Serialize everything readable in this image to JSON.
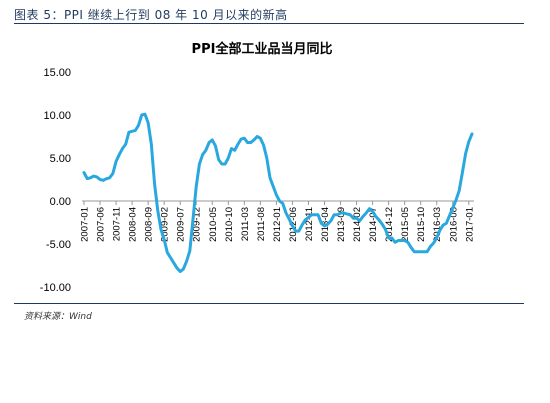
{
  "caption": "图表 5：PPI 继续上行到 08 年 10 月以来的新高",
  "source": "资料来源：Wind",
  "chart_data": {
    "type": "line",
    "title": "PPI全部工业品当月同比",
    "xlabel": "",
    "ylabel": "",
    "ylim": [
      -10,
      15
    ],
    "yticks": [
      15,
      10,
      5,
      0,
      -5,
      -10
    ],
    "ytick_labels": [
      "15.00",
      "10.00",
      "5.00",
      "0.00",
      "-5.00",
      "-10.00"
    ],
    "xtick_labels": [
      "2007-01",
      "2007-06",
      "2007-11",
      "2008-04",
      "2008-09",
      "2009-02",
      "2009-07",
      "2009-12",
      "2010-05",
      "2010-10",
      "2011-03",
      "2011-08",
      "2012-01",
      "2012-06",
      "2012-11",
      "2013-04",
      "2013-09",
      "2014-02",
      "2014-07",
      "2014-12",
      "2015-05",
      "2015-10",
      "2016-03",
      "2016-08",
      "2017-01"
    ],
    "grid": false,
    "color": "#29a8df",
    "series": [
      {
        "x_start": "2007-01",
        "values": [
          3.3,
          2.6,
          2.7,
          2.9,
          2.8,
          2.5,
          2.4,
          2.6,
          2.7,
          3.2,
          4.6,
          5.4,
          6.1,
          6.6,
          8.0,
          8.1,
          8.2,
          8.8,
          10.0,
          10.1,
          9.1,
          6.6,
          2.0,
          -1.1,
          -3.3,
          -4.5,
          -6.0,
          -6.6,
          -7.2,
          -7.8,
          -8.2,
          -7.9,
          -7.0,
          -5.8,
          -2.1,
          1.7,
          4.3,
          5.4,
          5.9,
          6.8,
          7.1,
          6.4,
          4.8,
          4.3,
          4.3,
          5.0,
          6.1,
          5.9,
          6.6,
          7.2,
          7.3,
          6.8,
          6.8,
          7.1,
          7.5,
          7.3,
          6.5,
          5.0,
          2.7,
          1.7,
          0.7,
          0.0,
          -0.3,
          -1.4,
          -2.1,
          -2.9,
          -3.5,
          -3.5,
          -2.8,
          -2.2,
          -1.9,
          -1.6,
          -1.6,
          -1.6,
          -2.6,
          -2.9,
          -2.7,
          -2.3,
          -1.6,
          -1.6,
          -1.4,
          -1.4,
          -1.5,
          -1.6,
          -2.0,
          -2.0,
          -2.3,
          -1.8,
          -1.4,
          -0.9,
          -1.2,
          -1.8,
          -2.2,
          -2.7,
          -3.3,
          -4.3,
          -4.3,
          -4.8,
          -4.6,
          -4.6,
          -4.6,
          -4.8,
          -5.4,
          -5.9,
          -5.9,
          -5.9,
          -5.9,
          -5.9,
          -5.3,
          -4.9,
          -4.3,
          -3.4,
          -2.8,
          -2.6,
          -1.7,
          -0.8,
          0.1,
          1.2,
          3.3,
          5.5,
          6.9,
          7.8
        ]
      }
    ]
  }
}
